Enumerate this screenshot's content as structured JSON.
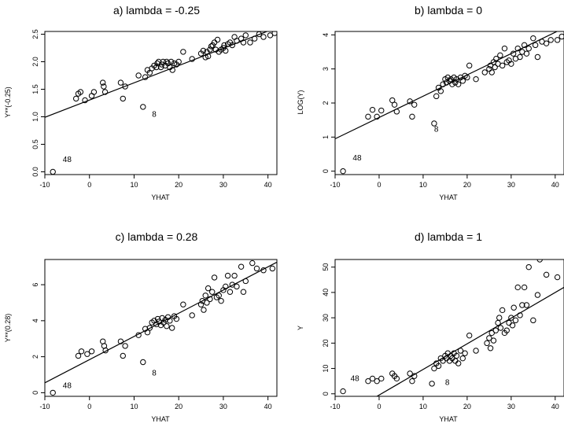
{
  "chart_data": [
    {
      "type": "scatter",
      "title": "a) lambda = -0.25",
      "xlabel": "YHAT",
      "ylabel": "Y**(-0.25)",
      "xlim": [
        -10,
        42
      ],
      "ylim": [
        -0.05,
        2.55
      ],
      "xticks": [
        -10,
        0,
        10,
        20,
        30,
        40
      ],
      "xtick_labels": [
        "-10",
        "0",
        "10",
        "20",
        "30",
        "40"
      ],
      "yticks": [
        0.0,
        0.5,
        1.0,
        1.5,
        2.0,
        2.5
      ],
      "ytick_labels": [
        "0.0",
        "0.5",
        "1.0",
        "1.5",
        "2.0",
        "2.5"
      ],
      "grid": false,
      "fit_line": [
        [
          -10,
          0.99
        ],
        [
          42,
          2.62
        ]
      ],
      "annotations": [
        {
          "text": "48",
          "x": -5.0,
          "y": 0.18
        },
        {
          "text": "8",
          "x": 14.5,
          "y": 1.0
        }
      ],
      "points": [
        [
          -8.2,
          0.0
        ],
        [
          -3.0,
          1.33
        ],
        [
          -2.0,
          1.45
        ],
        [
          -2.5,
          1.42
        ],
        [
          -1.0,
          1.3
        ],
        [
          0.5,
          1.38
        ],
        [
          1.0,
          1.45
        ],
        [
          3.0,
          1.62
        ],
        [
          3.2,
          1.55
        ],
        [
          3.5,
          1.45
        ],
        [
          7.0,
          1.62
        ],
        [
          7.5,
          1.33
        ],
        [
          8.0,
          1.55
        ],
        [
          11.0,
          1.75
        ],
        [
          12.0,
          1.18
        ],
        [
          12.5,
          1.72
        ],
        [
          13.0,
          1.85
        ],
        [
          13.5,
          1.8
        ],
        [
          14.0,
          1.88
        ],
        [
          14.5,
          1.93
        ],
        [
          15.0,
          1.9
        ],
        [
          15.2,
          1.97
        ],
        [
          15.5,
          2.0
        ],
        [
          16.0,
          1.9
        ],
        [
          16.2,
          1.95
        ],
        [
          16.5,
          2.0
        ],
        [
          17.0,
          1.93
        ],
        [
          17.3,
          2.0
        ],
        [
          17.6,
          1.97
        ],
        [
          18.0,
          1.9
        ],
        [
          18.3,
          2.0
        ],
        [
          18.6,
          1.85
        ],
        [
          19.0,
          1.97
        ],
        [
          19.5,
          1.95
        ],
        [
          20.0,
          2.0
        ],
        [
          21.0,
          2.18
        ],
        [
          23.0,
          2.05
        ],
        [
          25.0,
          2.15
        ],
        [
          25.5,
          2.2
        ],
        [
          26.0,
          2.08
        ],
        [
          26.3,
          2.18
        ],
        [
          26.6,
          2.1
        ],
        [
          27.0,
          2.22
        ],
        [
          27.3,
          2.28
        ],
        [
          27.6,
          2.3
        ],
        [
          28.0,
          2.35
        ],
        [
          28.3,
          2.22
        ],
        [
          28.7,
          2.4
        ],
        [
          29.0,
          2.18
        ],
        [
          29.5,
          2.22
        ],
        [
          30.0,
          2.25
        ],
        [
          30.2,
          2.3
        ],
        [
          30.5,
          2.2
        ],
        [
          31.0,
          2.32
        ],
        [
          31.5,
          2.35
        ],
        [
          32.0,
          2.3
        ],
        [
          32.5,
          2.45
        ],
        [
          33.0,
          2.38
        ],
        [
          34.0,
          2.42
        ],
        [
          34.5,
          2.35
        ],
        [
          35.0,
          2.48
        ],
        [
          36.0,
          2.35
        ],
        [
          37.0,
          2.42
        ],
        [
          38.0,
          2.5
        ],
        [
          39.0,
          2.45
        ],
        [
          40.5,
          2.48
        ],
        [
          41.5,
          2.52
        ]
      ]
    },
    {
      "type": "scatter",
      "title": "b) lambda = 0",
      "xlabel": "YHAT",
      "ylabel": "LOG(Y)",
      "xlim": [
        -10,
        42
      ],
      "ylim": [
        -0.1,
        4.1
      ],
      "xticks": [
        -10,
        0,
        10,
        20,
        30,
        40
      ],
      "xtick_labels": [
        "-10",
        "0",
        "10",
        "20",
        "30",
        "40"
      ],
      "yticks": [
        0,
        1,
        2,
        3,
        4
      ],
      "ytick_labels": [
        "0",
        "1",
        "2",
        "3",
        "4"
      ],
      "grid": false,
      "fit_line": [
        [
          -10,
          0.95
        ],
        [
          42,
          4.2
        ]
      ],
      "annotations": [
        {
          "text": "48",
          "x": -5.0,
          "y": 0.32
        },
        {
          "text": "8",
          "x": 13.0,
          "y": 1.16
        }
      ],
      "points": [
        [
          -8.2,
          0.0
        ],
        [
          -2.5,
          1.6
        ],
        [
          -1.5,
          1.8
        ],
        [
          -0.5,
          1.6
        ],
        [
          0.5,
          1.78
        ],
        [
          3.0,
          2.08
        ],
        [
          3.5,
          1.95
        ],
        [
          4.0,
          1.75
        ],
        [
          7.0,
          2.05
        ],
        [
          7.5,
          1.6
        ],
        [
          8.0,
          1.95
        ],
        [
          12.5,
          1.4
        ],
        [
          13.0,
          2.2
        ],
        [
          13.5,
          2.45
        ],
        [
          14.0,
          2.35
        ],
        [
          14.5,
          2.55
        ],
        [
          15.0,
          2.7
        ],
        [
          15.3,
          2.6
        ],
        [
          15.6,
          2.75
        ],
        [
          16.0,
          2.65
        ],
        [
          16.3,
          2.7
        ],
        [
          16.6,
          2.55
        ],
        [
          17.0,
          2.75
        ],
        [
          17.3,
          2.6
        ],
        [
          17.6,
          2.7
        ],
        [
          18.0,
          2.55
        ],
        [
          18.5,
          2.75
        ],
        [
          19.0,
          2.65
        ],
        [
          19.5,
          2.8
        ],
        [
          20.0,
          2.75
        ],
        [
          20.5,
          3.1
        ],
        [
          22.0,
          2.7
        ],
        [
          24.0,
          2.9
        ],
        [
          25.0,
          3.0
        ],
        [
          25.3,
          3.1
        ],
        [
          25.6,
          2.9
        ],
        [
          26.0,
          3.2
        ],
        [
          26.3,
          3.05
        ],
        [
          26.6,
          3.3
        ],
        [
          27.0,
          3.15
        ],
        [
          27.5,
          3.4
        ],
        [
          28.0,
          3.1
        ],
        [
          28.5,
          3.6
        ],
        [
          29.0,
          3.2
        ],
        [
          29.5,
          3.25
        ],
        [
          30.0,
          3.15
        ],
        [
          30.5,
          3.45
        ],
        [
          31.0,
          3.3
        ],
        [
          31.5,
          3.6
        ],
        [
          32.0,
          3.35
        ],
        [
          32.5,
          3.5
        ],
        [
          33.0,
          3.7
        ],
        [
          33.5,
          3.45
        ],
        [
          34.0,
          3.6
        ],
        [
          35.0,
          3.9
        ],
        [
          35.5,
          3.7
        ],
        [
          36.0,
          3.35
        ],
        [
          37.0,
          3.8
        ],
        [
          38.0,
          3.75
        ],
        [
          39.0,
          3.85
        ],
        [
          40.5,
          3.85
        ],
        [
          41.5,
          3.95
        ]
      ]
    },
    {
      "type": "scatter",
      "title": "c) lambda = 0.28",
      "xlabel": "YHAT",
      "ylabel": "Y**(0.28)",
      "xlim": [
        -10,
        42
      ],
      "ylim": [
        -0.2,
        7.4
      ],
      "xticks": [
        -10,
        0,
        10,
        20,
        30,
        40
      ],
      "xtick_labels": [
        "-10",
        "0",
        "10",
        "20",
        "30",
        "40"
      ],
      "yticks": [
        0,
        2,
        4,
        6
      ],
      "ytick_labels": [
        "0",
        "2",
        "4",
        "6"
      ],
      "grid": false,
      "fit_line": [
        [
          -10,
          0.55
        ],
        [
          42,
          7.25
        ]
      ],
      "annotations": [
        {
          "text": "48",
          "x": -5.0,
          "y": 0.25
        },
        {
          "text": "8",
          "x": 14.5,
          "y": 0.95
        }
      ],
      "points": [
        [
          -8.2,
          0.0
        ],
        [
          -2.5,
          2.05
        ],
        [
          -1.8,
          2.3
        ],
        [
          -0.5,
          2.15
        ],
        [
          0.5,
          2.3
        ],
        [
          3.0,
          2.85
        ],
        [
          3.3,
          2.6
        ],
        [
          3.6,
          2.35
        ],
        [
          7.0,
          2.85
        ],
        [
          7.5,
          2.05
        ],
        [
          8.0,
          2.6
        ],
        [
          11.0,
          3.2
        ],
        [
          12.0,
          1.7
        ],
        [
          12.5,
          3.55
        ],
        [
          13.0,
          3.35
        ],
        [
          13.5,
          3.6
        ],
        [
          14.0,
          3.9
        ],
        [
          14.5,
          4.0
        ],
        [
          15.0,
          3.8
        ],
        [
          15.3,
          4.1
        ],
        [
          15.6,
          3.95
        ],
        [
          16.0,
          3.75
        ],
        [
          16.3,
          4.15
        ],
        [
          16.6,
          3.9
        ],
        [
          17.0,
          4.05
        ],
        [
          17.3,
          3.7
        ],
        [
          17.6,
          4.2
        ],
        [
          18.0,
          4.0
        ],
        [
          18.5,
          3.6
        ],
        [
          19.0,
          4.25
        ],
        [
          19.5,
          4.1
        ],
        [
          21.0,
          4.9
        ],
        [
          23.0,
          4.3
        ],
        [
          25.0,
          4.9
        ],
        [
          25.3,
          5.1
        ],
        [
          25.6,
          4.6
        ],
        [
          26.0,
          5.4
        ],
        [
          26.3,
          5.0
        ],
        [
          26.6,
          5.8
        ],
        [
          27.0,
          5.2
        ],
        [
          27.5,
          5.6
        ],
        [
          28.0,
          6.4
        ],
        [
          28.5,
          5.3
        ],
        [
          29.0,
          5.4
        ],
        [
          29.5,
          5.1
        ],
        [
          30.0,
          5.7
        ],
        [
          30.5,
          5.9
        ],
        [
          31.0,
          6.5
        ],
        [
          31.5,
          5.6
        ],
        [
          32.0,
          6.0
        ],
        [
          32.5,
          6.5
        ],
        [
          33.0,
          5.9
        ],
        [
          34.0,
          7.0
        ],
        [
          34.5,
          5.6
        ],
        [
          35.0,
          6.2
        ],
        [
          36.5,
          7.2
        ],
        [
          37.5,
          6.9
        ],
        [
          39.0,
          6.8
        ],
        [
          41.0,
          6.9
        ]
      ]
    },
    {
      "type": "scatter",
      "title": "d) lambda = 1",
      "xlabel": "YHAT",
      "ylabel": "Y",
      "xlim": [
        -10,
        42
      ],
      "ylim": [
        -1,
        53
      ],
      "xticks": [
        -10,
        0,
        10,
        20,
        30,
        40
      ],
      "xtick_labels": [
        "-10",
        "0",
        "10",
        "20",
        "30",
        "40"
      ],
      "yticks": [
        0,
        10,
        20,
        30,
        40,
        50
      ],
      "ytick_labels": [
        "0",
        "10",
        "20",
        "30",
        "40",
        "50"
      ],
      "grid": false,
      "fit_line": [
        [
          -0.5,
          -1
        ],
        [
          42,
          42
        ]
      ],
      "annotations": [
        {
          "text": "48",
          "x": -5.5,
          "y": 5.0
        },
        {
          "text": "8",
          "x": 15.5,
          "y": 3.5
        }
      ],
      "points": [
        [
          -8.2,
          1.0
        ],
        [
          -2.5,
          5.0
        ],
        [
          -1.5,
          6.0
        ],
        [
          -0.5,
          5.0
        ],
        [
          0.5,
          6.0
        ],
        [
          3.0,
          8.0
        ],
        [
          3.5,
          7.0
        ],
        [
          4.0,
          6.0
        ],
        [
          7.0,
          8.0
        ],
        [
          7.5,
          5.0
        ],
        [
          8.0,
          7.0
        ],
        [
          12.0,
          4.0
        ],
        [
          12.5,
          10.0
        ],
        [
          13.0,
          12.0
        ],
        [
          13.5,
          11.0
        ],
        [
          14.0,
          14.0
        ],
        [
          14.5,
          13.0
        ],
        [
          15.0,
          15.0
        ],
        [
          15.3,
          14.0
        ],
        [
          15.6,
          16.0
        ],
        [
          16.0,
          13.0
        ],
        [
          16.3,
          15.0
        ],
        [
          16.6,
          14.0
        ],
        [
          17.0,
          16.0
        ],
        [
          17.3,
          13.0
        ],
        [
          17.6,
          15.0
        ],
        [
          18.0,
          12.0
        ],
        [
          18.5,
          17.0
        ],
        [
          19.0,
          14.0
        ],
        [
          19.5,
          16.0
        ],
        [
          20.5,
          23.0
        ],
        [
          22.0,
          17.0
        ],
        [
          24.5,
          20.0
        ],
        [
          25.0,
          22.0
        ],
        [
          25.3,
          18.0
        ],
        [
          25.6,
          24.0
        ],
        [
          26.0,
          21.0
        ],
        [
          26.5,
          25.0
        ],
        [
          27.0,
          28.0
        ],
        [
          27.3,
          30.0
        ],
        [
          27.6,
          26.0
        ],
        [
          28.0,
          33.0
        ],
        [
          28.5,
          24.0
        ],
        [
          29.0,
          25.0
        ],
        [
          29.5,
          28.0
        ],
        [
          30.0,
          30.0
        ],
        [
          30.3,
          27.0
        ],
        [
          30.6,
          34.0
        ],
        [
          31.0,
          29.0
        ],
        [
          31.5,
          42.0
        ],
        [
          32.0,
          31.0
        ],
        [
          32.5,
          35.0
        ],
        [
          33.0,
          42.0
        ],
        [
          33.5,
          35.0
        ],
        [
          34.0,
          50.0
        ],
        [
          35.0,
          29.0
        ],
        [
          36.0,
          39.0
        ],
        [
          36.5,
          53.0
        ],
        [
          38.0,
          47.0
        ],
        [
          40.5,
          46.0
        ]
      ]
    }
  ]
}
